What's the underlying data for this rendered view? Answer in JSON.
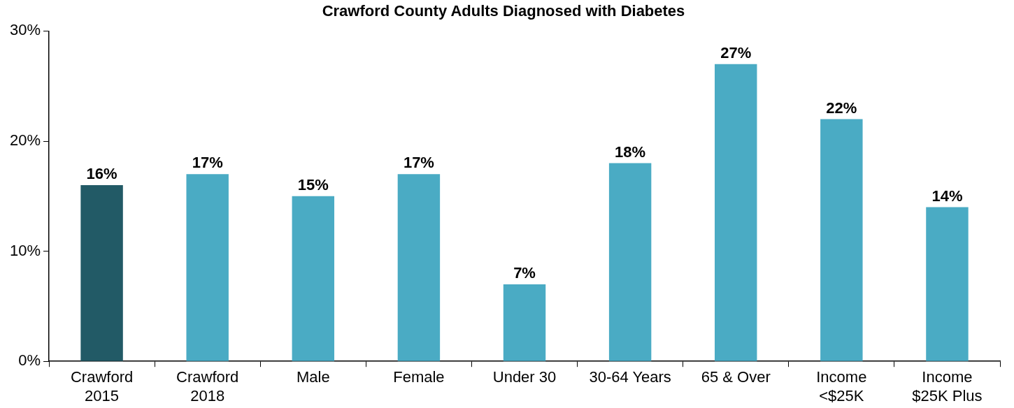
{
  "chart_data": {
    "type": "bar",
    "title": "Crawford County Adults Diagnosed with Diabetes",
    "categories": [
      "Crawford\n2015",
      "Crawford\n2018",
      "Male",
      "Female",
      "Under 30",
      "30-64 Years",
      "65 & Over",
      "Income\n<$25K",
      "Income\n$25K Plus"
    ],
    "values": [
      16,
      17,
      15,
      17,
      7,
      18,
      27,
      22,
      14
    ],
    "colors": [
      "#225a66",
      "#4aabc4",
      "#4aabc4",
      "#4aabc4",
      "#4aabc4",
      "#4aabc4",
      "#4aabc4",
      "#4aabc4",
      "#4aabc4"
    ],
    "value_labels": [
      "16%",
      "17%",
      "15%",
      "17%",
      "7%",
      "18%",
      "27%",
      "22%",
      "14%"
    ],
    "ylim": [
      0,
      30
    ],
    "yticks": [
      {
        "value": 0,
        "label": "0%"
      },
      {
        "value": 10,
        "label": "10%"
      },
      {
        "value": 20,
        "label": "20%"
      },
      {
        "value": 30,
        "label": "30%"
      }
    ],
    "grid": false,
    "legend": false
  }
}
